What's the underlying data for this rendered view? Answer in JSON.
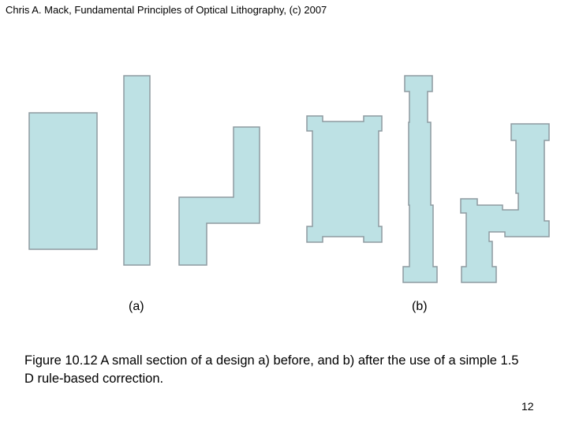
{
  "header": {
    "title": "Chris A. Mack, Fundamental Principles of Optical Lithography, (c) 2007"
  },
  "figure": {
    "fill_color": "#bde1e4",
    "edge_color": "#8e9aa0",
    "label_a": "(a)",
    "label_b": "(b)"
  },
  "caption": {
    "text": "Figure 10.12  A small section of a design a) before, and b) after the use of a simple 1.5 D rule-based correction."
  },
  "page_number": "12"
}
